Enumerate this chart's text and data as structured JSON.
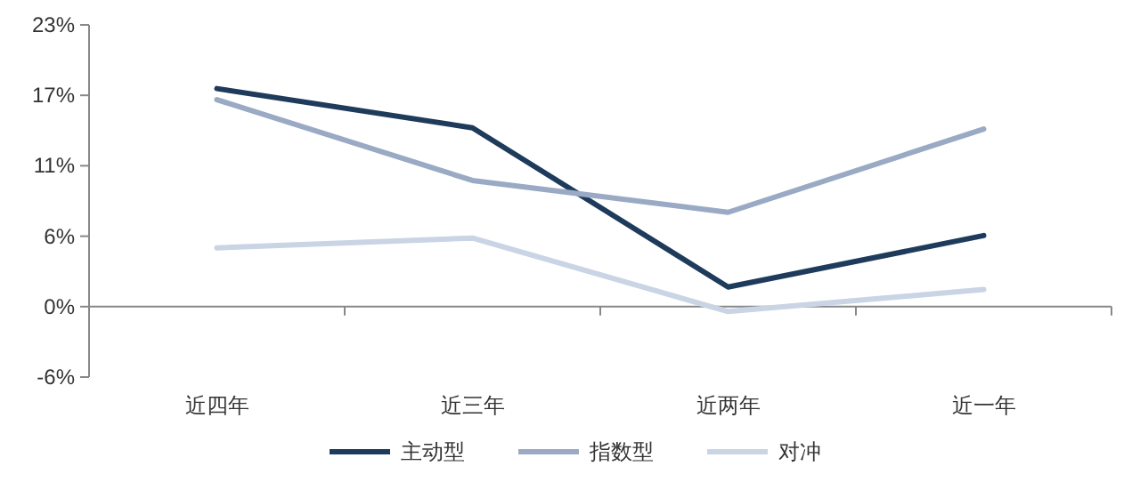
{
  "chart_data": {
    "type": "line",
    "categories": [
      "近四年",
      "近三年",
      "近两年",
      "近一年"
    ],
    "series": [
      {
        "name": "主动型",
        "color": "#1f3b5c",
        "values": [
          17.8,
          14.6,
          1.6,
          5.8
        ]
      },
      {
        "name": "指数型",
        "color": "#9aaac4",
        "values": [
          16.9,
          10.3,
          7.7,
          14.5
        ]
      },
      {
        "name": "对冲",
        "color": "#c9d4e5",
        "values": [
          4.8,
          5.6,
          -0.4,
          1.4
        ]
      }
    ],
    "ylim": [
      -5.75,
      23
    ],
    "yticks": [
      {
        "value": -5.75,
        "label": "-6%"
      },
      {
        "value": 0,
        "label": "0%"
      },
      {
        "value": 5.75,
        "label": "6%"
      },
      {
        "value": 11.5,
        "label": "11%"
      },
      {
        "value": 17.25,
        "label": "17%"
      },
      {
        "value": 23,
        "label": "23%"
      }
    ],
    "legend": "bottom",
    "marker": "none",
    "line_style": "solid"
  }
}
